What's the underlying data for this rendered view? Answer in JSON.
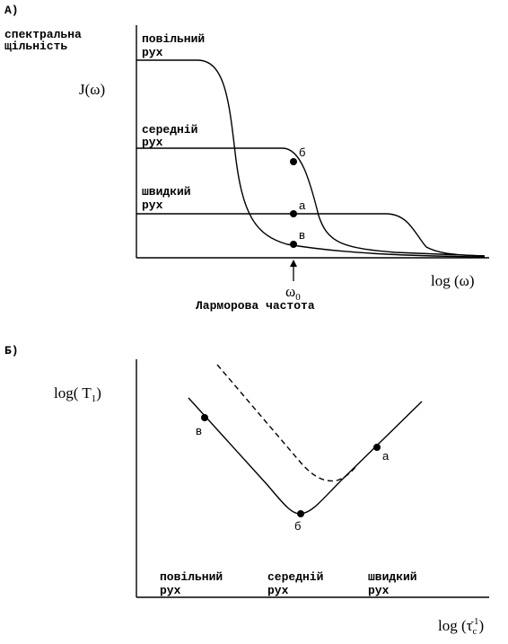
{
  "panel_a": {
    "label": "А)",
    "y_title": [
      "спектральна",
      "щільність"
    ],
    "y_label": "J(ω)",
    "curves": [
      {
        "name": [
          "повільний",
          "рух"
        ],
        "point": "в"
      },
      {
        "name": [
          "середній",
          "рух"
        ],
        "point": "б"
      },
      {
        "name": [
          "швидкий",
          "рух"
        ],
        "point": "а"
      }
    ],
    "x_label": "log (ω)",
    "marker": {
      "symbol": "ω",
      "sub": "0",
      "caption": "Ларморова частота"
    }
  },
  "panel_b": {
    "label": "Б)",
    "y_label": {
      "main": "log( T",
      "sub": "1",
      "end": ")"
    },
    "points": [
      "в",
      "б",
      "а"
    ],
    "regimes": [
      [
        "повільний",
        "рух"
      ],
      [
        "середній",
        "рух"
      ],
      [
        "швидкий",
        "рух"
      ]
    ],
    "x_label": {
      "main": "log (τ",
      "sub": "c",
      "sup": "-1",
      "end": ")"
    }
  }
}
